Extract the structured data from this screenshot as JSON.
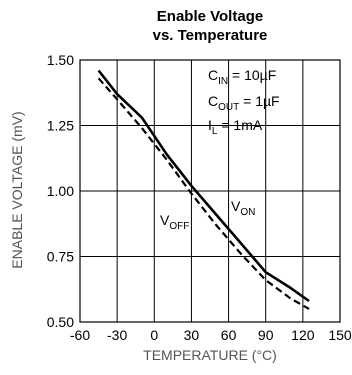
{
  "chart_data": {
    "type": "line",
    "title": "Enable Voltage",
    "subtitle": "vs. Temperature",
    "xlabel": "TEMPERATURE (°C)",
    "ylabel": "ENABLE VOLTAGE (mV)",
    "xlim": [
      -60,
      150
    ],
    "ylim": [
      0.5,
      1.5
    ],
    "xticks": [
      -60,
      -30,
      0,
      30,
      60,
      90,
      120,
      150
    ],
    "xtick_labels": [
      "-60",
      "-30",
      "0",
      "30",
      "60",
      "90",
      "120",
      "150"
    ],
    "yticks": [
      0.5,
      0.75,
      1.0,
      1.25,
      1.5
    ],
    "ytick_labels": [
      "0.50",
      "0.75",
      "1.00",
      "1.25",
      "1.50"
    ],
    "grid": true,
    "series": [
      {
        "name": "V_ON",
        "style": "solid",
        "x": [
          -45,
          -30,
          -10,
          10,
          30,
          50,
          70,
          90,
          110,
          125
        ],
        "y": [
          1.46,
          1.37,
          1.28,
          1.14,
          1.02,
          0.91,
          0.8,
          0.69,
          0.63,
          0.58
        ]
      },
      {
        "name": "V_OFF",
        "style": "dashed",
        "x": [
          -45,
          -30,
          -10,
          10,
          30,
          50,
          70,
          90,
          110,
          125
        ],
        "y": [
          1.43,
          1.35,
          1.24,
          1.12,
          0.99,
          0.87,
          0.76,
          0.66,
          0.59,
          0.55
        ]
      }
    ],
    "annotations": {
      "cin": {
        "main": "C",
        "sub": "IN",
        "rest": " = 10µF"
      },
      "cout": {
        "main": "C",
        "sub": "OUT",
        "rest": " = 1µF"
      },
      "il": {
        "main": "I",
        "sub": "L",
        "rest": " = 1mA"
      },
      "von": {
        "main": "V",
        "sub": "ON"
      },
      "voff": {
        "main": "V",
        "sub": "OFF"
      }
    }
  }
}
